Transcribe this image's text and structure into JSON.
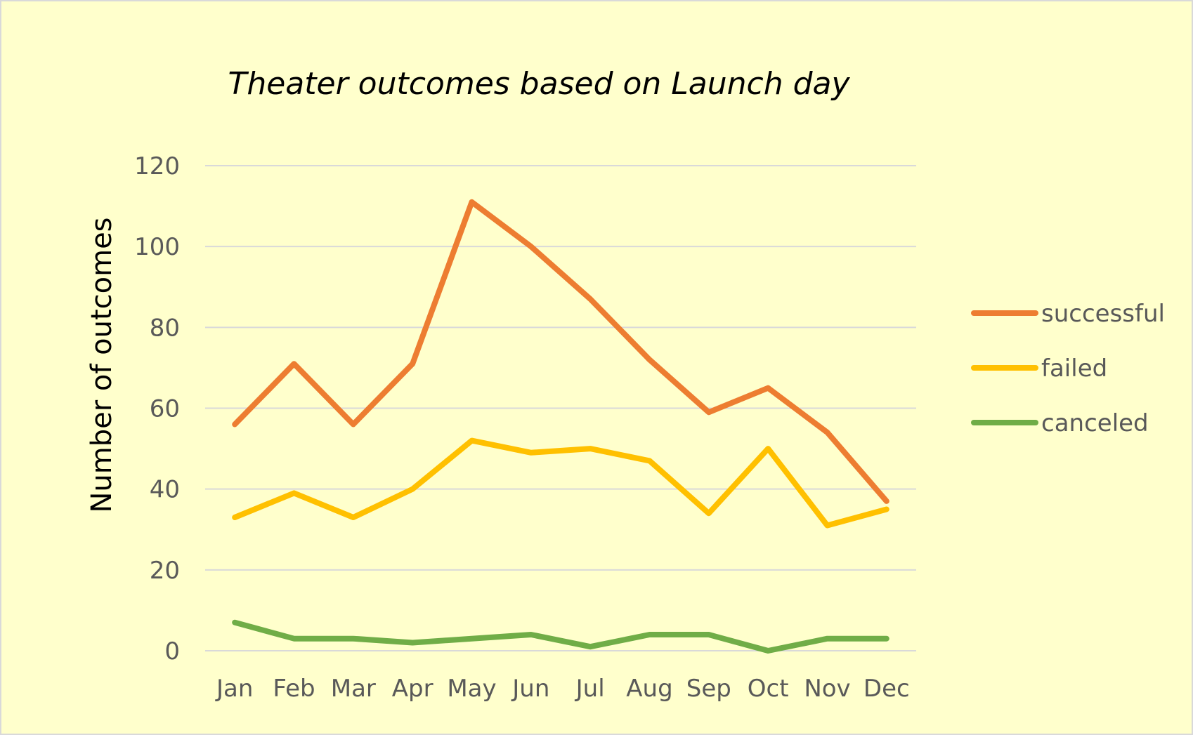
{
  "colors": {
    "background": "#FFFFCC",
    "border": "#D9D9D9",
    "gridline": "#D9D9D9",
    "tick_text": "#595959",
    "title_text": "#000000"
  },
  "chart_data": {
    "type": "line",
    "title": "Theater outcomes based on Launch day",
    "xlabel": "",
    "ylabel": "Number of outcomes",
    "categories": [
      "Jan",
      "Feb",
      "Mar",
      "Apr",
      "May",
      "Jun",
      "Jul",
      "Aug",
      "Sep",
      "Oct",
      "Nov",
      "Dec"
    ],
    "ylim": [
      0,
      120
    ],
    "yticks": [
      0,
      20,
      40,
      60,
      80,
      100,
      120
    ],
    "grid": true,
    "legend_position": "right",
    "series": [
      {
        "name": "successful",
        "color": "#ED7D31",
        "values": [
          56,
          71,
          56,
          71,
          111,
          100,
          87,
          72,
          59,
          65,
          54,
          37
        ]
      },
      {
        "name": "failed",
        "color": "#FFC000",
        "values": [
          33,
          39,
          33,
          40,
          52,
          49,
          50,
          47,
          34,
          50,
          31,
          35
        ]
      },
      {
        "name": "canceled",
        "color": "#70AD47",
        "values": [
          7,
          3,
          3,
          2,
          3,
          4,
          1,
          4,
          4,
          0,
          3,
          3
        ]
      }
    ]
  }
}
